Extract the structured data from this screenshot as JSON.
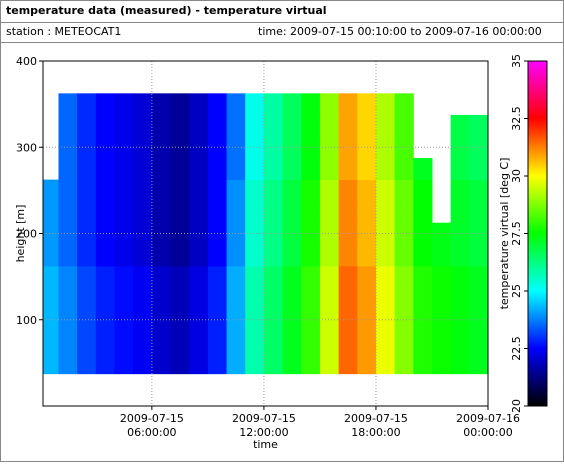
{
  "header": {
    "title": "temperature data (measured) - temperature virtual",
    "station": "station : METEOCAT1",
    "time": "time: 2009-07-15 00:10:00 to 2009-07-16 00:00:00"
  },
  "chart_data": {
    "type": "heatmap",
    "xlabel": "time",
    "ylabel": "height [m]",
    "colorbar_label": "temperature virtual [deg C]",
    "x": [
      0.5,
      1.5,
      2.5,
      3.5,
      4.5,
      5.5,
      6.5,
      7.5,
      8.5,
      9.5,
      10.5,
      11.5,
      12.5,
      13.5,
      14.5,
      15.5,
      16.5,
      17.5,
      18.5,
      19.5,
      20.5,
      21.5,
      22.5,
      23.5
    ],
    "y": [
      50,
      75,
      100,
      125,
      150,
      175,
      200,
      225,
      250,
      275,
      300,
      325,
      350
    ],
    "z": [
      [
        24.3,
        23.8,
        23.2,
        22.8,
        22.6,
        22.4,
        22.0,
        21.8,
        22.2,
        22.8,
        24.2,
        25.8,
        26.5,
        27.2,
        28.0,
        29.5,
        31.5,
        31.0,
        29.8,
        28.8,
        27.8,
        27.6,
        27.4,
        27.2
      ],
      [
        24.3,
        23.8,
        23.2,
        22.8,
        22.6,
        22.4,
        22.0,
        21.8,
        22.2,
        22.8,
        24.2,
        25.8,
        26.5,
        27.2,
        28.0,
        29.5,
        31.5,
        31.0,
        29.8,
        28.8,
        27.8,
        27.6,
        27.4,
        27.2
      ],
      [
        24.3,
        23.8,
        23.2,
        22.8,
        22.6,
        22.4,
        22.0,
        21.8,
        22.2,
        22.8,
        24.2,
        25.8,
        26.5,
        27.2,
        28.0,
        29.5,
        31.5,
        31.0,
        29.8,
        28.8,
        27.8,
        27.6,
        27.4,
        27.2
      ],
      [
        24.3,
        23.8,
        23.2,
        22.8,
        22.6,
        22.4,
        22.0,
        21.8,
        22.2,
        22.8,
        24.2,
        25.8,
        26.5,
        27.2,
        28.0,
        29.5,
        31.5,
        31.0,
        29.8,
        28.8,
        27.8,
        27.6,
        27.4,
        27.2
      ],
      [
        24.3,
        23.8,
        23.2,
        22.8,
        22.6,
        22.4,
        22.0,
        21.8,
        22.2,
        22.8,
        24.2,
        25.8,
        26.5,
        27.2,
        28.0,
        29.5,
        31.5,
        31.0,
        29.8,
        28.8,
        27.8,
        27.6,
        27.4,
        27.2
      ],
      [
        24.0,
        23.5,
        22.9,
        22.5,
        22.3,
        22.1,
        21.7,
        21.5,
        21.9,
        22.5,
        23.9,
        25.5,
        26.2,
        26.9,
        27.7,
        29.2,
        31.2,
        30.7,
        29.5,
        28.5,
        27.5,
        27.3,
        27.1,
        26.9
      ],
      [
        24.0,
        23.5,
        22.9,
        22.5,
        22.3,
        22.1,
        21.7,
        21.5,
        21.9,
        22.5,
        23.9,
        25.5,
        26.2,
        26.9,
        27.7,
        29.2,
        31.2,
        30.7,
        29.5,
        28.5,
        27.5,
        27.3,
        27.1,
        26.9
      ],
      [
        24.0,
        23.5,
        22.9,
        22.5,
        22.3,
        22.1,
        21.7,
        21.5,
        21.9,
        22.5,
        23.9,
        25.5,
        26.2,
        26.9,
        27.7,
        29.2,
        31.2,
        30.7,
        29.5,
        28.5,
        27.5,
        null,
        27.1,
        26.9
      ],
      [
        24.0,
        23.5,
        22.9,
        22.5,
        22.3,
        22.1,
        21.7,
        21.5,
        21.9,
        22.5,
        23.9,
        25.5,
        26.2,
        26.9,
        27.7,
        29.2,
        31.2,
        30.7,
        29.5,
        28.5,
        27.5,
        null,
        27.1,
        26.9
      ],
      [
        null,
        23.5,
        22.9,
        22.5,
        22.3,
        22.1,
        21.7,
        21.5,
        21.9,
        22.5,
        23.6,
        25.2,
        25.9,
        26.6,
        27.4,
        28.9,
        30.9,
        30.4,
        29.2,
        28.2,
        27.2,
        null,
        26.8,
        26.6
      ],
      [
        null,
        23.5,
        22.9,
        22.5,
        22.3,
        22.1,
        21.7,
        21.5,
        21.9,
        22.5,
        23.6,
        25.2,
        25.9,
        26.6,
        27.4,
        28.9,
        30.9,
        30.4,
        29.2,
        28.2,
        null,
        null,
        26.8,
        26.6
      ],
      [
        null,
        23.5,
        22.9,
        22.5,
        22.3,
        22.1,
        21.7,
        21.5,
        21.9,
        22.5,
        23.6,
        25.2,
        25.9,
        26.6,
        27.4,
        28.9,
        30.9,
        30.4,
        29.2,
        28.2,
        null,
        null,
        26.8,
        26.6
      ],
      [
        null,
        23.5,
        22.9,
        22.5,
        22.3,
        22.1,
        21.7,
        21.5,
        21.9,
        22.5,
        23.6,
        25.2,
        25.9,
        26.6,
        27.4,
        28.9,
        30.9,
        30.4,
        29.2,
        28.2,
        null,
        null,
        null,
        null
      ]
    ],
    "xlim": [
      0.17,
      24
    ],
    "ylim": [
      0,
      400
    ],
    "xticks": [
      {
        "value": 6,
        "label": "2009-07-15 06:00:00"
      },
      {
        "value": 12,
        "label": "2009-07-15 12:00:00"
      },
      {
        "value": 18,
        "label": "2009-07-15 18:00:00"
      },
      {
        "value": 24,
        "label": "2009-07-16 00:00:00"
      }
    ],
    "yticks": [
      100,
      200,
      300,
      400
    ],
    "zlim": [
      20,
      35
    ],
    "zticks": [
      20,
      22.5,
      25,
      27.5,
      30,
      32.5,
      35
    ],
    "colormap": [
      "#000000",
      "#0000ff",
      "#00ffff",
      "#00ff00",
      "#ffff00",
      "#ff0000",
      "#ff00ff"
    ],
    "grid": true
  }
}
